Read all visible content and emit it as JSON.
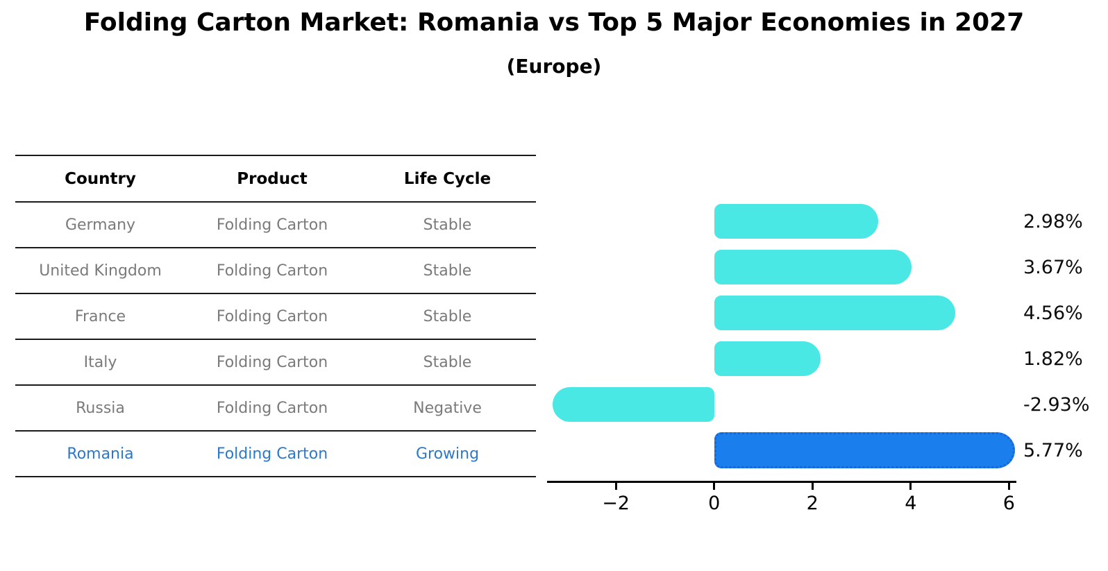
{
  "title": "Folding Carton Market: Romania vs Top 5 Major Economies in 2027",
  "subtitle": "(Europe)",
  "table": {
    "headers": [
      "Country",
      "Product",
      "Life Cycle"
    ],
    "rows": [
      {
        "country": "Germany",
        "product": "Folding Carton",
        "life_cycle": "Stable",
        "highlight": false
      },
      {
        "country": "United Kingdom",
        "product": "Folding Carton",
        "life_cycle": "Stable",
        "highlight": false
      },
      {
        "country": "France",
        "product": "Folding Carton",
        "life_cycle": "Stable",
        "highlight": false
      },
      {
        "country": "Italy",
        "product": "Folding Carton",
        "life_cycle": "Stable",
        "highlight": false
      },
      {
        "country": "Russia",
        "product": "Folding Carton",
        "life_cycle": "Negative",
        "highlight": false
      },
      {
        "country": "Romania",
        "product": "Folding Carton",
        "life_cycle": "Growing",
        "highlight": true
      }
    ]
  },
  "colors": {
    "bar": "#4AE8E4",
    "highlight_bar": "#1B7EED",
    "highlight_border": "#1766D8",
    "row_text": "#7a7a7a",
    "highlight_text": "#2E78C8",
    "axis": "#000000",
    "value_label_text": "#0d0d0d"
  },
  "chart_data": {
    "type": "bar",
    "orientation": "horizontal",
    "title": "Folding Carton Market: Romania vs Top 5 Major Economies in 2027",
    "subtitle": "(Europe)",
    "categories": [
      "Germany",
      "United Kingdom",
      "France",
      "Italy",
      "Russia",
      "Romania"
    ],
    "values": [
      2.98,
      3.67,
      4.56,
      1.82,
      -2.93,
      5.77
    ],
    "value_labels": [
      "2.98%",
      "3.67%",
      "4.56%",
      "1.82%",
      "-2.93%",
      "5.77%"
    ],
    "unit": "%",
    "highlight_index": 5,
    "xlim": [
      -3.4,
      6.15
    ],
    "x_ticks": [
      {
        "value": -2,
        "label": "−2"
      },
      {
        "value": 0,
        "label": "0"
      },
      {
        "value": 2,
        "label": "2"
      },
      {
        "value": 4,
        "label": "4"
      },
      {
        "value": 6,
        "label": "6"
      }
    ],
    "grid": false,
    "legend": false
  }
}
